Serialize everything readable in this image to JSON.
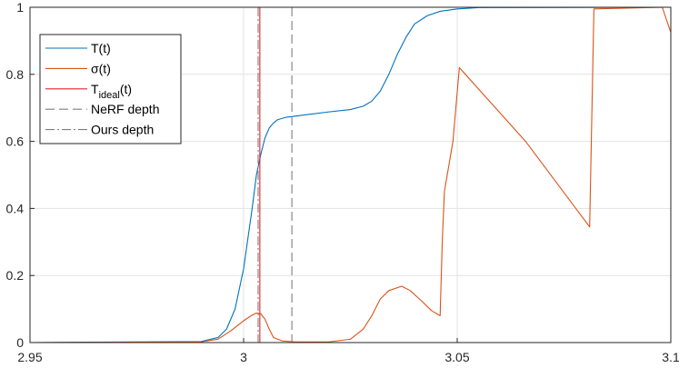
{
  "chart_data": {
    "type": "line",
    "title": "",
    "xlabel": "",
    "ylabel": "",
    "xlim": [
      2.95,
      3.1
    ],
    "ylim": [
      0,
      1
    ],
    "xticks": [
      2.95,
      3,
      3.05,
      3.1
    ],
    "xtick_labels": [
      "2.95",
      "3",
      "3.05",
      "3.1"
    ],
    "yticks": [
      0,
      0.2,
      0.4,
      0.6,
      0.8,
      1
    ],
    "ytick_labels": [
      "0",
      "0.2",
      "0.4",
      "0.6",
      "0.8",
      "1"
    ],
    "grid": true,
    "legend_position": "top-left",
    "legend": [
      {
        "label": "T(t)",
        "sub": "",
        "suffix": "",
        "style": "solid",
        "color": "#0072BD"
      },
      {
        "label": "σ(t)",
        "sub": "",
        "suffix": "",
        "style": "solid",
        "color": "#D95319"
      },
      {
        "label": "T",
        "sub": "ideal",
        "suffix": "(t)",
        "style": "solid",
        "color": "#E8202A"
      },
      {
        "label": "NeRF depth",
        "sub": "",
        "suffix": "",
        "style": "dashed",
        "color": "#7F7F7F"
      },
      {
        "label": "Ours depth",
        "sub": "",
        "suffix": "",
        "style": "dashdot",
        "color": "#7F7F7F"
      }
    ],
    "series": [
      {
        "name": "T(t)",
        "color": "#0072BD",
        "style": "solid",
        "points": [
          [
            2.95,
            0
          ],
          [
            2.96,
            0.001
          ],
          [
            2.99,
            0.003
          ],
          [
            2.994,
            0.015
          ],
          [
            2.996,
            0.04
          ],
          [
            2.998,
            0.1
          ],
          [
            3.0,
            0.22
          ],
          [
            3.002,
            0.4
          ],
          [
            3.003,
            0.5
          ],
          [
            3.004,
            0.56
          ],
          [
            3.005,
            0.61
          ],
          [
            3.006,
            0.64
          ],
          [
            3.007,
            0.655
          ],
          [
            3.008,
            0.665
          ],
          [
            3.01,
            0.672
          ],
          [
            3.015,
            0.68
          ],
          [
            3.02,
            0.688
          ],
          [
            3.025,
            0.695
          ],
          [
            3.028,
            0.705
          ],
          [
            3.03,
            0.72
          ],
          [
            3.032,
            0.75
          ],
          [
            3.034,
            0.8
          ],
          [
            3.036,
            0.86
          ],
          [
            3.038,
            0.91
          ],
          [
            3.04,
            0.95
          ],
          [
            3.043,
            0.975
          ],
          [
            3.046,
            0.988
          ],
          [
            3.05,
            0.995
          ],
          [
            3.055,
            0.999
          ],
          [
            3.1,
            1.0
          ]
        ]
      },
      {
        "name": "σ(t)",
        "color": "#D95319",
        "style": "solid",
        "points": [
          [
            2.95,
            0
          ],
          [
            2.99,
            0.002
          ],
          [
            2.994,
            0.01
          ],
          [
            2.997,
            0.035
          ],
          [
            3.0,
            0.065
          ],
          [
            3.002,
            0.082
          ],
          [
            3.003,
            0.088
          ],
          [
            3.004,
            0.086
          ],
          [
            3.005,
            0.07
          ],
          [
            3.006,
            0.04
          ],
          [
            3.007,
            0.015
          ],
          [
            3.009,
            0.005
          ],
          [
            3.012,
            0.002
          ],
          [
            3.02,
            0.002
          ],
          [
            3.025,
            0.01
          ],
          [
            3.028,
            0.04
          ],
          [
            3.03,
            0.08
          ],
          [
            3.032,
            0.13
          ],
          [
            3.034,
            0.155
          ],
          [
            3.037,
            0.168
          ],
          [
            3.039,
            0.155
          ],
          [
            3.042,
            0.12
          ],
          [
            3.044,
            0.095
          ],
          [
            3.046,
            0.08
          ],
          [
            3.0465,
            0.3
          ],
          [
            3.047,
            0.45
          ],
          [
            3.049,
            0.6
          ],
          [
            3.0505,
            0.82
          ],
          [
            3.066,
            0.6
          ],
          [
            3.081,
            0.345
          ],
          [
            3.082,
            0.995
          ],
          [
            3.098,
            1.0
          ],
          [
            3.1,
            0.925
          ]
        ]
      },
      {
        "name": "T_ideal(t)",
        "color": "#E8202A",
        "style": "solid",
        "points": [
          [
            2.95,
            0
          ],
          [
            3.0038,
            0
          ],
          [
            3.0038,
            1
          ],
          [
            3.1,
            1
          ]
        ]
      }
    ],
    "vlines": [
      {
        "name": "NeRF depth",
        "x": 3.0113,
        "style": "dashed",
        "color": "#7F7F7F"
      },
      {
        "name": "Ours depth",
        "x": 3.0034,
        "style": "dashdot",
        "color": "#7F7F7F"
      }
    ]
  }
}
